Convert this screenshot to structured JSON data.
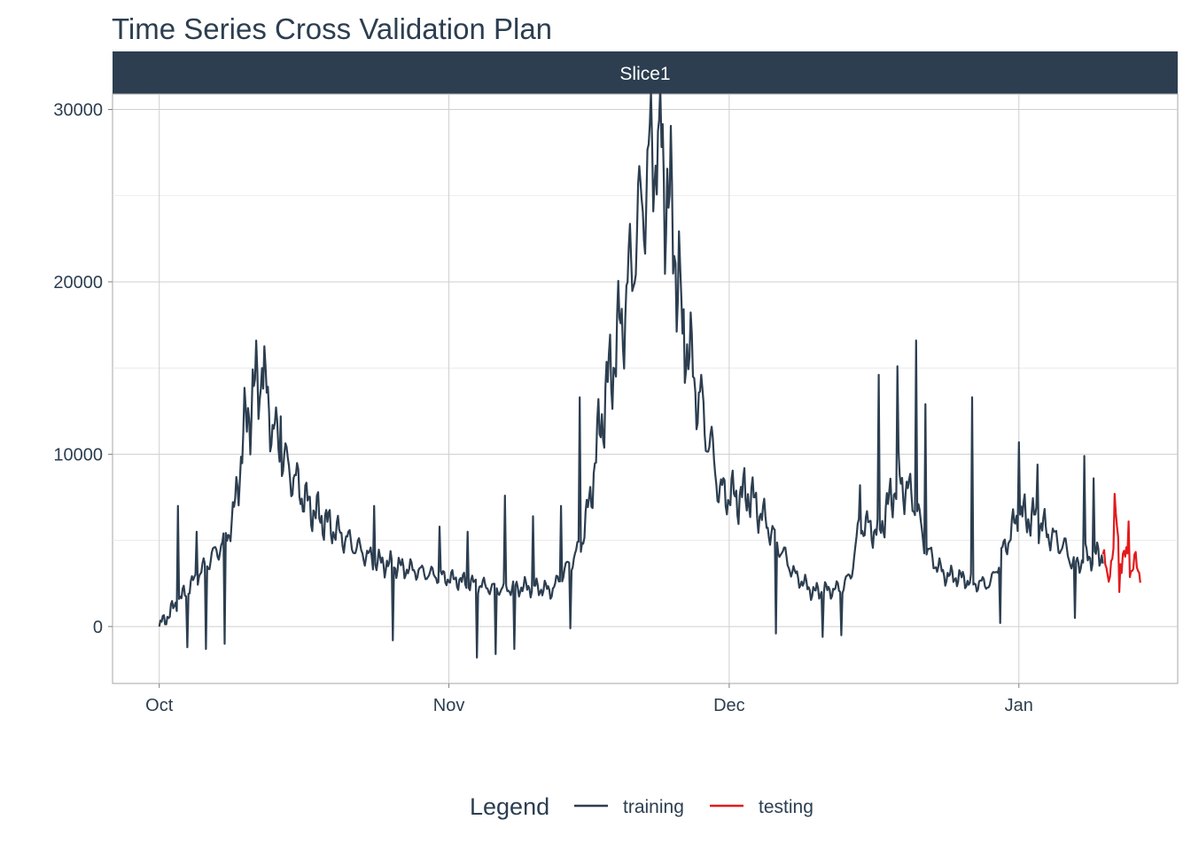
{
  "chart_data": {
    "type": "line",
    "title": "Time Series Cross Validation Plan",
    "facet_label": "Slice1",
    "xlabel": "",
    "ylabel": "",
    "x_tick_labels": [
      "Oct",
      "Nov",
      "Dec",
      "Jan"
    ],
    "x_tick_dates": [
      "2017-10-01",
      "2017-11-01",
      "2017-12-01",
      "2018-01-01"
    ],
    "xlim": [
      "2017-09-26",
      "2018-01-18"
    ],
    "y_ticks": [
      0,
      10000,
      20000,
      30000
    ],
    "y_tick_labels": [
      "0",
      "10000",
      "20000",
      "30000"
    ],
    "ylim": [
      -3300,
      30900
    ],
    "grid": true,
    "legend": {
      "title": "Legend",
      "position": "bottom",
      "entries": [
        {
          "label": "training",
          "color": "#2c3e50"
        },
        {
          "label": "testing",
          "color": "#e31a1c"
        }
      ]
    },
    "series": [
      {
        "name": "training",
        "color": "#2c3e50",
        "anchors": [
          [
            "2017-10-01",
            0
          ],
          [
            "2017-10-08",
            5000
          ],
          [
            "2017-10-09",
            6500
          ],
          [
            "2017-10-10",
            11000
          ],
          [
            "2017-10-11",
            13500
          ],
          [
            "2017-10-12",
            14500
          ],
          [
            "2017-10-13",
            12000
          ],
          [
            "2017-10-14",
            10000
          ],
          [
            "2017-10-15",
            9000
          ],
          [
            "2017-10-17",
            7000
          ],
          [
            "2017-10-20",
            5500
          ],
          [
            "2017-10-24",
            3800
          ],
          [
            "2017-11-01",
            2800
          ],
          [
            "2017-11-06",
            2200
          ],
          [
            "2017-11-10",
            2300
          ],
          [
            "2017-11-12",
            2100
          ],
          [
            "2017-11-15",
            4500
          ],
          [
            "2017-11-16",
            7000
          ],
          [
            "2017-11-17",
            11000
          ],
          [
            "2017-11-18",
            14000
          ],
          [
            "2017-11-19",
            16500
          ],
          [
            "2017-11-20",
            19000
          ],
          [
            "2017-11-21",
            22500
          ],
          [
            "2017-11-22",
            25500
          ],
          [
            "2017-11-23",
            28000
          ],
          [
            "2017-11-23T12:00",
            29000
          ],
          [
            "2017-11-24",
            26500
          ],
          [
            "2017-11-25",
            23000
          ],
          [
            "2017-11-26",
            18000
          ],
          [
            "2017-11-27",
            15000
          ],
          [
            "2017-11-28",
            12500
          ],
          [
            "2017-11-29",
            10500
          ],
          [
            "2017-11-30",
            7800
          ],
          [
            "2017-12-02",
            7500
          ],
          [
            "2017-12-03",
            7800
          ],
          [
            "2017-12-05",
            6000
          ],
          [
            "2017-12-08",
            3000
          ],
          [
            "2017-12-10",
            2000
          ],
          [
            "2017-12-13",
            2200
          ],
          [
            "2017-12-14",
            3000
          ],
          [
            "2017-12-15",
            6000
          ],
          [
            "2017-12-17",
            5500
          ],
          [
            "2017-12-18",
            7000
          ],
          [
            "2017-12-19",
            8500
          ],
          [
            "2017-12-20",
            8000
          ],
          [
            "2017-12-21",
            7000
          ],
          [
            "2017-12-22",
            4500
          ],
          [
            "2017-12-24",
            3000
          ],
          [
            "2017-12-26",
            2800
          ],
          [
            "2017-12-27",
            2500
          ],
          [
            "2017-12-29",
            2500
          ],
          [
            "2017-12-30",
            4000
          ],
          [
            "2018-01-01",
            6500
          ],
          [
            "2018-01-03",
            6200
          ],
          [
            "2018-01-04",
            5500
          ],
          [
            "2018-01-06",
            4500
          ],
          [
            "2018-01-07",
            3500
          ],
          [
            "2018-01-08",
            4000
          ],
          [
            "2018-01-10",
            4200
          ]
        ],
        "spikes": [
          [
            "2017-10-03",
            7000
          ],
          [
            "2017-10-05",
            5500
          ],
          [
            "2017-10-06",
            5800
          ],
          [
            "2017-10-12",
            15000
          ],
          [
            "2017-10-14",
            12200
          ],
          [
            "2017-10-24",
            7000
          ],
          [
            "2017-10-26",
            6000
          ],
          [
            "2017-10-31",
            5800
          ],
          [
            "2017-11-03",
            5500
          ],
          [
            "2017-11-07",
            7600
          ],
          [
            "2017-11-10",
            6400
          ],
          [
            "2017-11-13",
            7000
          ],
          [
            "2017-11-15",
            13300
          ],
          [
            "2017-11-17",
            13200
          ],
          [
            "2017-11-23T12:00",
            29400
          ],
          [
            "2017-11-26",
            17000
          ],
          [
            "2017-11-28",
            14600
          ],
          [
            "2017-12-13",
            7200
          ],
          [
            "2017-12-15",
            8200
          ],
          [
            "2017-12-17",
            14600
          ],
          [
            "2017-12-19",
            15100
          ],
          [
            "2017-12-21",
            16600
          ],
          [
            "2017-12-22",
            12900
          ],
          [
            "2017-12-27",
            13300
          ],
          [
            "2018-01-01",
            10700
          ],
          [
            "2018-01-03",
            9400
          ],
          [
            "2018-01-08",
            9900
          ],
          [
            "2018-01-09",
            8600
          ]
        ],
        "dips": [
          [
            "2017-10-04",
            -1200
          ],
          [
            "2017-10-06",
            -1300
          ],
          [
            "2017-10-08",
            -1000
          ],
          [
            "2017-10-26",
            -800
          ],
          [
            "2017-11-04",
            -1800
          ],
          [
            "2017-11-06",
            -1600
          ],
          [
            "2017-11-08",
            -1300
          ],
          [
            "2017-11-14",
            -100
          ],
          [
            "2017-12-06",
            -400
          ],
          [
            "2017-12-11",
            -600
          ],
          [
            "2017-12-13",
            -500
          ],
          [
            "2017-12-30",
            200
          ],
          [
            "2018-01-07",
            500
          ]
        ]
      },
      {
        "name": "testing",
        "color": "#e31a1c",
        "anchors": [
          [
            "2018-01-10",
            4200
          ],
          [
            "2018-01-10T12:00",
            3000
          ],
          [
            "2018-01-11",
            3800
          ],
          [
            "2018-01-11T12:00",
            6500
          ],
          [
            "2018-01-12",
            3500
          ],
          [
            "2018-01-12T12:00",
            4200
          ],
          [
            "2018-01-13",
            3200
          ],
          [
            "2018-01-13T12:00",
            3700
          ],
          [
            "2018-01-14",
            3000
          ]
        ],
        "spikes": [
          [
            "2018-01-11T06:00",
            7700
          ],
          [
            "2018-01-12T18:00",
            6100
          ]
        ],
        "dips": [
          [
            "2018-01-11T18:00",
            2000
          ]
        ]
      }
    ]
  }
}
